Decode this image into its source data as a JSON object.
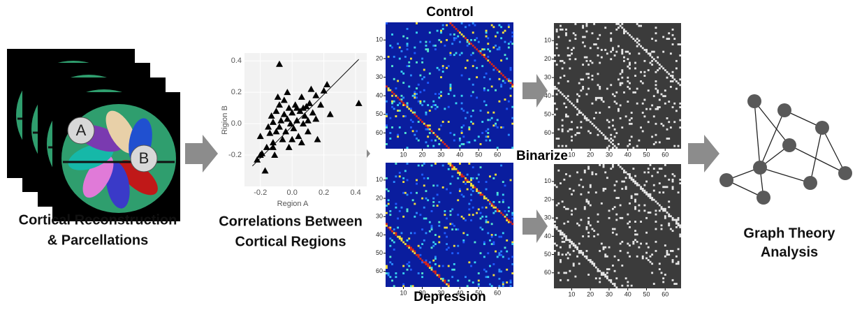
{
  "brains": {
    "labels": [
      "A",
      "B"
    ],
    "caption": [
      "Cortical Reconstruction",
      "& Parcellations"
    ]
  },
  "scatter": {
    "type": "scatter",
    "xlabel": "Region A",
    "ylabel": "Rigion B",
    "xlim": [
      -0.3,
      0.47
    ],
    "ylim": [
      -0.4,
      0.45
    ],
    "xticks": [
      -0.2,
      {
        "value": 0,
        "label": "0.0"
      },
      0.2,
      0.4
    ],
    "yticks": [
      -0.2,
      {
        "value": 0,
        "label": "0.0"
      },
      0.2,
      0.4
    ],
    "grid": true,
    "x": [
      -0.19,
      -0.2,
      -0.16,
      -0.15,
      -0.13,
      -0.12,
      -0.1,
      -0.1,
      -0.08,
      -0.08,
      -0.07,
      -0.06,
      -0.05,
      -0.05,
      -0.04,
      -0.03,
      -0.02,
      -0.02,
      -0.01,
      0.0,
      0.01,
      0.02,
      0.03,
      0.04,
      0.05,
      0.06,
      0.07,
      0.08,
      0.09,
      0.1,
      0.11,
      0.12,
      0.13,
      0.15,
      0.16,
      0.18,
      0.2,
      0.22,
      0.24,
      -0.12,
      -0.09,
      -0.14,
      0.0,
      0.03,
      0.07,
      -0.11,
      -0.2,
      -0.22,
      -0.17,
      0.42,
      -0.08,
      -0.12,
      0.06,
      -0.03,
      0.1,
      0.15
    ],
    "y": [
      -0.19,
      -0.08,
      -0.15,
      -0.02,
      0.05,
      -0.12,
      0.08,
      -0.05,
      0.12,
      -0.02,
      0.02,
      -0.1,
      0.06,
      0.15,
      -0.05,
      0.03,
      0.1,
      -0.15,
      0.0,
      0.07,
      -0.03,
      0.12,
      0.02,
      -0.08,
      0.08,
      0.17,
      0.0,
      0.05,
      0.11,
      -0.05,
      0.13,
      0.22,
      0.07,
      0.18,
      -0.1,
      0.12,
      0.21,
      0.25,
      0.06,
      0.01,
      0.17,
      -0.06,
      -0.1,
      0.1,
      0.1,
      -0.2,
      -0.2,
      -0.23,
      -0.3,
      0.13,
      0.38,
      -0.15,
      -0.12,
      0.2,
      0.02,
      0.03
    ],
    "fit_x": [
      -0.25,
      0.42
    ],
    "fit_y": [
      -0.27,
      0.41
    ],
    "color": "#000000",
    "caption": [
      "Correlations Between",
      "Cortical Regions"
    ]
  },
  "matrices": {
    "lim": [
      0.5,
      68.5
    ],
    "ticks": [
      10,
      20,
      30,
      40,
      50,
      60
    ],
    "control": {
      "title": "Control"
    },
    "depression": {
      "title": "Depression"
    },
    "binarize": "Binarize"
  },
  "graph": {
    "caption": [
      "Graph Theory",
      "Analysis"
    ]
  }
}
